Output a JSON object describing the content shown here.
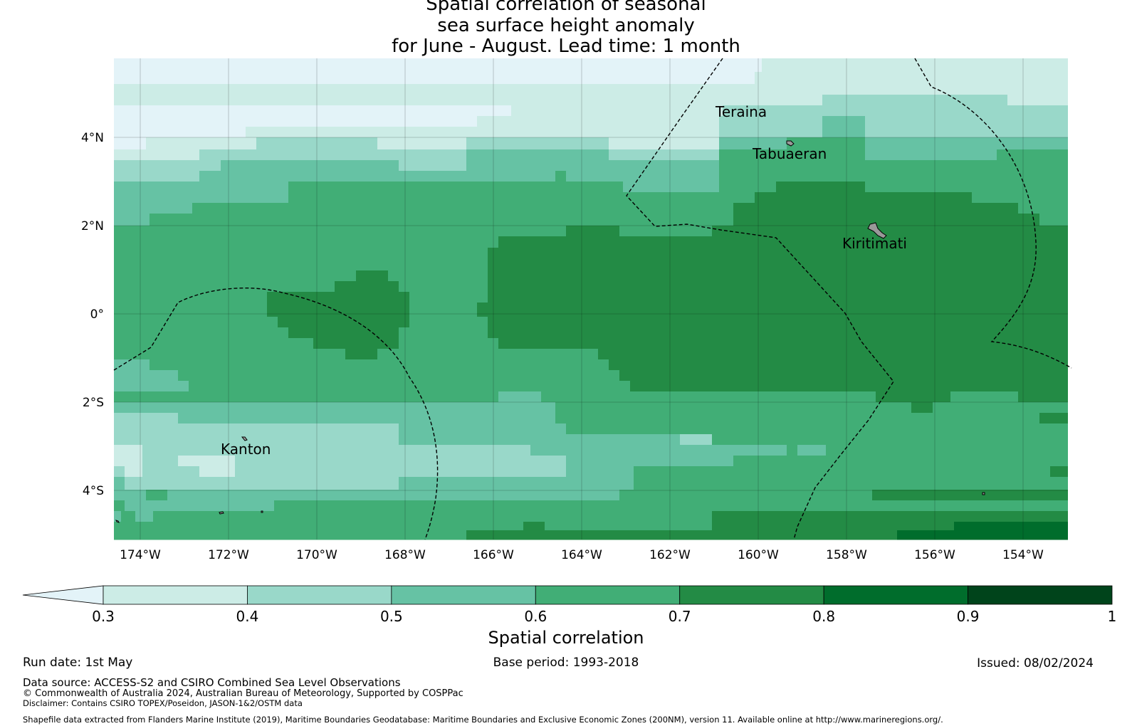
{
  "title": {
    "line1": "Spatial correlation of seasonal",
    "line2": "sea surface height anomaly",
    "line3": "for June - August. Lead time: 1 month"
  },
  "map": {
    "lon_ticks": [
      "174°W",
      "172°W",
      "170°W",
      "168°W",
      "166°W",
      "164°W",
      "162°W",
      "160°W",
      "158°W",
      "156°W",
      "154°W"
    ],
    "lat_ticks": [
      "4°N",
      "2°N",
      "0°",
      "2°S",
      "4°S"
    ],
    "places": [
      "Teraina",
      "Tabuaeran",
      "Kiritimati",
      "Kanton"
    ],
    "colors": {
      "lt_0.3": "#e3f3f8",
      "0.3-0.4": "#ccece6",
      "0.4-0.5": "#99d8c9",
      "0.5-0.6": "#66c2a4",
      "0.6-0.7": "#41ae76",
      "0.7-0.8": "#238b45",
      "0.8-0.9": "#006d2c",
      "0.9-1": "#00441b"
    }
  },
  "colorbar": {
    "tick_labels": [
      "0.3",
      "0.4",
      "0.5",
      "0.6",
      "0.7",
      "0.8",
      "0.9",
      "1"
    ],
    "label": "Spatial correlation"
  },
  "footer": {
    "run_date": "Run date: 1st May",
    "base_period": "Base period: 1993-2018",
    "issued": "Issued: 08/02/2024",
    "data_source": "Data source: ACCESS-S2 and CSIRO Combined Sea Level Observations",
    "copyright": "© Commonwealth of Australia 2024, Australian Bureau of Meteorology, Supported by COSPPac",
    "disclaimer": "Disclaimer: Contains CSIRO TOPEX/Poseidon, JASON-1&2/OSTM data",
    "shapefile": "Shapefile data extracted from Flanders Marine Institute (2019), Maritime Boundaries Geodatabase: Maritime Boundaries and Exclusive Economic Zones (200NM), version 11. Available online at http://www.marineregions.org/."
  }
}
